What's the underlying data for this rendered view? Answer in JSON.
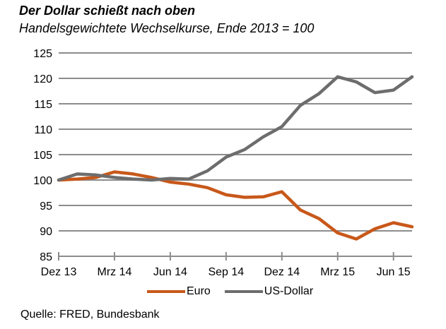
{
  "chart_data": {
    "type": "line",
    "title": "Der Dollar schießt nach oben",
    "subtitle": "Handelsgewichtete Wechselkurse, Ende 2013 = 100",
    "xlabel": "",
    "ylabel": "",
    "ylim": [
      85,
      125
    ],
    "yticks": [
      "125",
      "120",
      "115",
      "110",
      "105",
      "100",
      "95",
      "90",
      "85"
    ],
    "ytick_values": [
      125,
      120,
      115,
      110,
      105,
      100,
      95,
      90,
      85
    ],
    "x": [
      "Dez 13",
      "Jan 14",
      "Feb 14",
      "Mrz 14",
      "Apr 14",
      "Mai 14",
      "Jun 14",
      "Jul 14",
      "Aug 14",
      "Sep 14",
      "Okt 14",
      "Nov 14",
      "Dez 14",
      "Jan 15",
      "Feb 15",
      "Mrz 15",
      "Apr 15",
      "Mai 15",
      "Jun 15",
      "Jul 15"
    ],
    "xticks": [
      "Dez 13",
      "Mrz 14",
      "Jun 14",
      "Sep 14",
      "Dez 14",
      "Mrz 15",
      "Jun 15"
    ],
    "xtick_index": [
      0,
      3,
      6,
      9,
      12,
      15,
      18
    ],
    "grid": true,
    "legend_position": "bottom",
    "series": [
      {
        "name": "Euro",
        "color": "#c8581a",
        "values": [
          100.0,
          100.2,
          100.5,
          101.6,
          101.2,
          100.5,
          99.6,
          99.2,
          98.5,
          97.1,
          96.6,
          96.7,
          97.7,
          94.1,
          92.4,
          89.6,
          88.4,
          90.4,
          91.6,
          90.8
        ]
      },
      {
        "name": "US-Dollar",
        "color": "#6d6d6d",
        "values": [
          100.0,
          101.2,
          101.0,
          100.5,
          100.2,
          100.0,
          100.3,
          100.2,
          101.8,
          104.5,
          106.0,
          108.5,
          110.5,
          114.7,
          117.0,
          120.3,
          119.3,
          117.2,
          117.7,
          120.3
        ]
      }
    ],
    "source": "Quelle: FRED, Bundesbank"
  }
}
